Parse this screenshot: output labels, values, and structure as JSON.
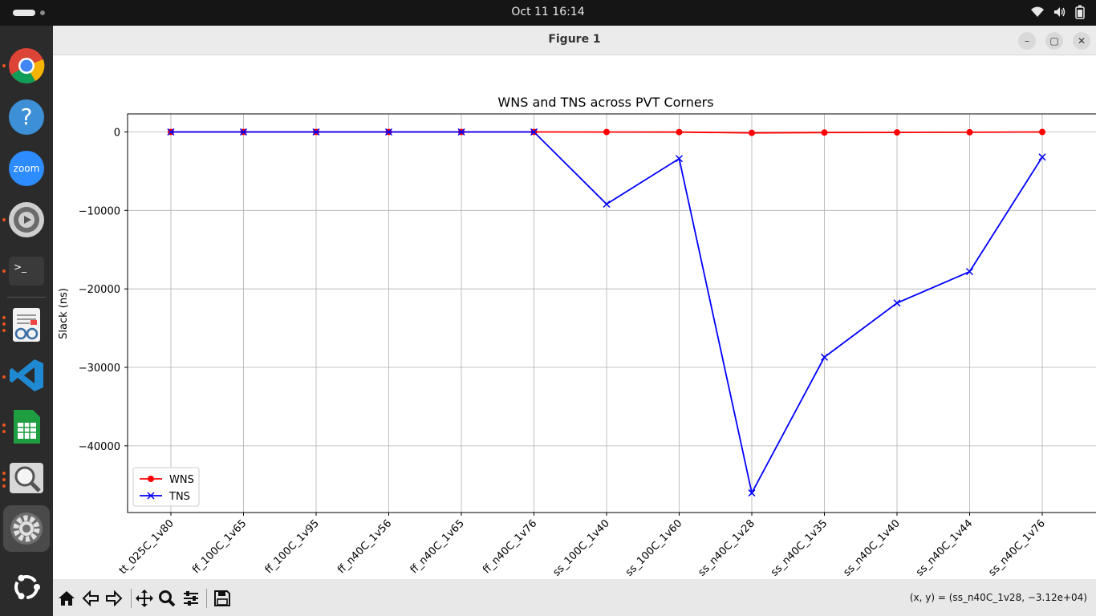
{
  "topbar": {
    "clock": "Oct 11  16:14"
  },
  "dock": {
    "items": [
      "chrome-icon",
      "help-icon",
      "zoom-icon",
      "media-settings-icon",
      "terminal-icon",
      "document-viewer-icon",
      "vscode-icon",
      "spreadsheet-icon",
      "image-viewer-icon",
      "settings-icon",
      "ubuntu-logo-icon"
    ]
  },
  "window": {
    "title": "Figure 1",
    "minimize_label": "–",
    "maximize_label": "▢",
    "close_label": "✕"
  },
  "toolbar": {
    "coords": "(x, y) = (ss_n40C_1v28, −3.12e+04)"
  },
  "chart_data": {
    "type": "line",
    "title": "WNS and TNS across PVT Corners",
    "xlabel": "",
    "ylabel": "Slack (ns)",
    "categories": [
      "tt_025C_1v80",
      "ff_100C_1v65",
      "ff_100C_1v95",
      "ff_n40C_1v56",
      "ff_n40C_1v65",
      "ff_n40C_1v76",
      "ss_100C_1v40",
      "ss_100C_1v60",
      "ss_n40C_1v28",
      "ss_n40C_1v35",
      "ss_n40C_1v40",
      "ss_n40C_1v44",
      "ss_n40C_1v76"
    ],
    "ylim": [
      -48500,
      2300
    ],
    "yticks": [
      0,
      -10000,
      -20000,
      -30000,
      -40000
    ],
    "ytick_labels": [
      "0",
      "−10000",
      "−20000",
      "−30000",
      "−40000"
    ],
    "grid": true,
    "legend": "lower-left",
    "series": [
      {
        "name": "WNS",
        "color": "#ff0000",
        "marker": "circle",
        "values": [
          0,
          0,
          0,
          0,
          0,
          0,
          -10,
          -20,
          -120,
          -80,
          -60,
          -40,
          -5
        ]
      },
      {
        "name": "TNS",
        "color": "#0000ff",
        "marker": "x",
        "values": [
          0,
          0,
          0,
          0,
          0,
          0,
          -9200,
          -3400,
          -46000,
          -28700,
          -21800,
          -17800,
          -3200
        ]
      }
    ]
  }
}
